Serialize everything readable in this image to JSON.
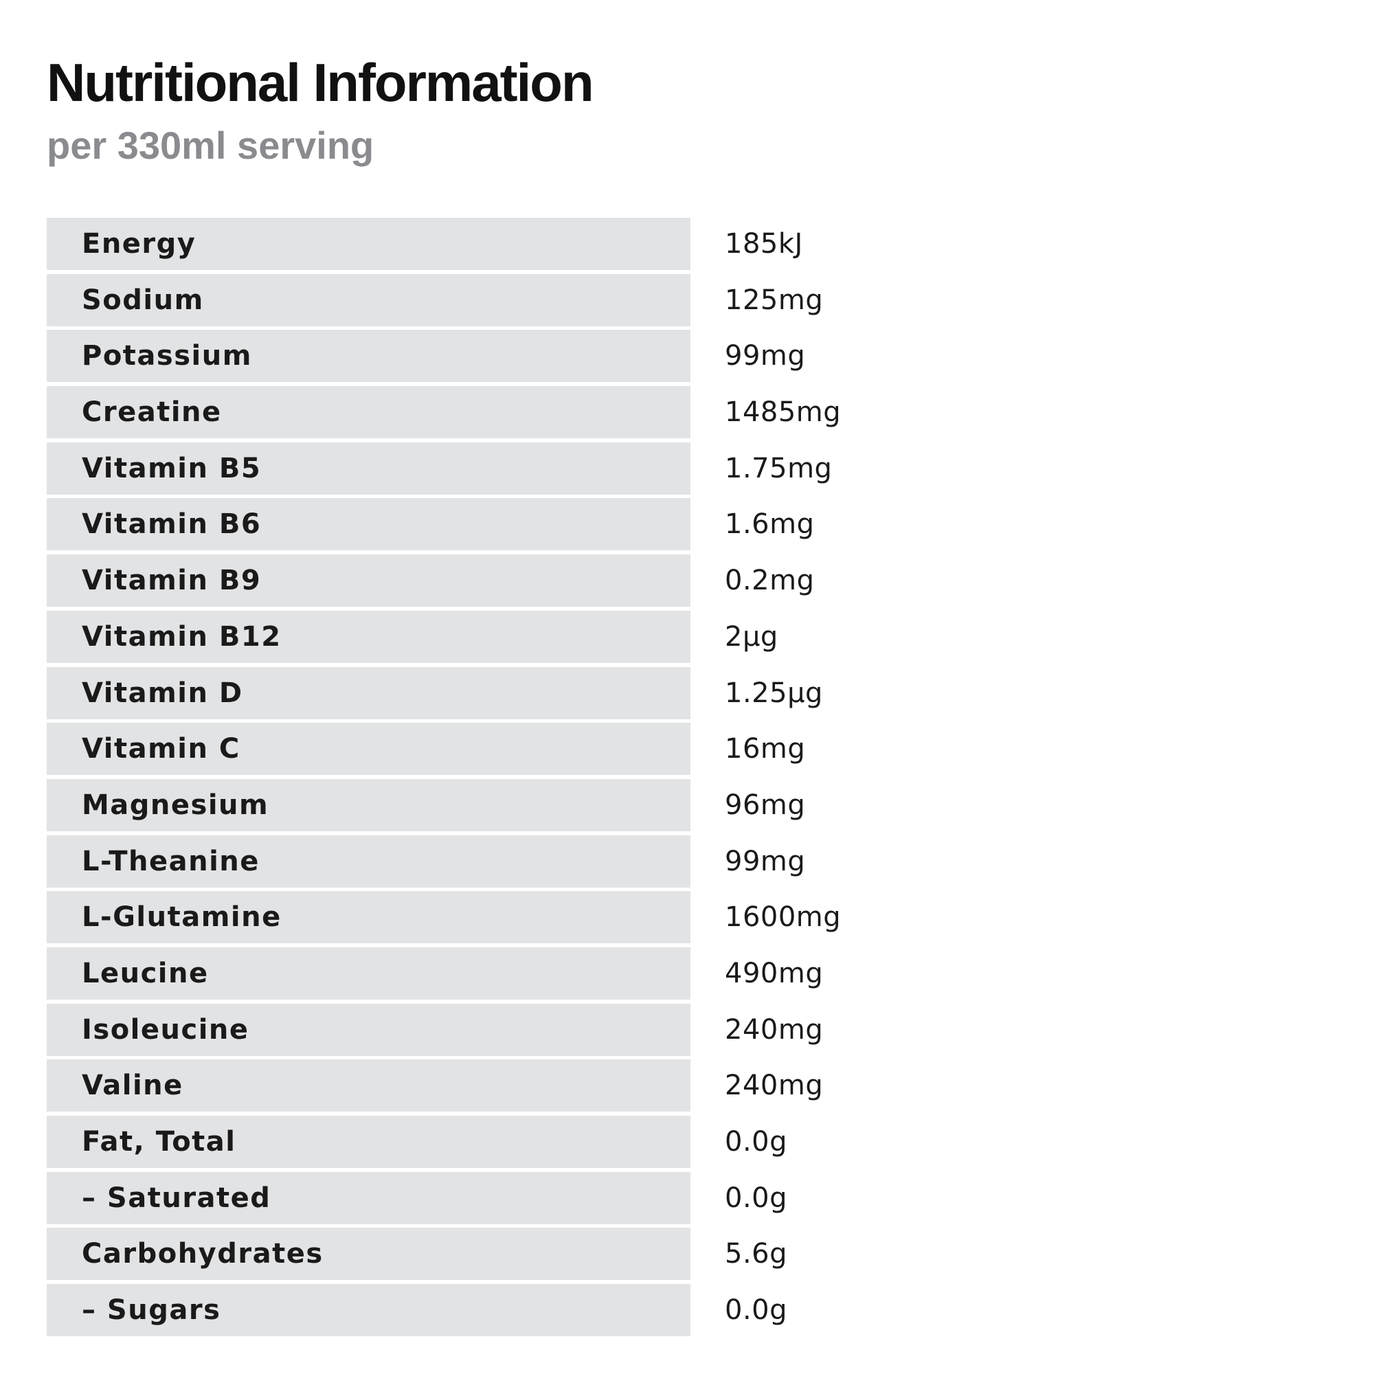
{
  "header": {
    "title": "Nutritional Information",
    "subtitle": "per 330ml serving"
  },
  "nutrients": [
    {
      "label": "Energy",
      "value": "185kJ"
    },
    {
      "label": "Sodium",
      "value": "125mg"
    },
    {
      "label": "Potassium",
      "value": "99mg"
    },
    {
      "label": "Creatine",
      "value": "1485mg"
    },
    {
      "label": "Vitamin B5",
      "value": "1.75mg"
    },
    {
      "label": "Vitamin B6",
      "value": "1.6mg"
    },
    {
      "label": "Vitamin B9",
      "value": "0.2mg"
    },
    {
      "label": "Vitamin B12",
      "value": "2μg"
    },
    {
      "label": "Vitamin D",
      "value": "1.25μg"
    },
    {
      "label": "Vitamin C",
      "value": "16mg"
    },
    {
      "label": "Magnesium",
      "value": "96mg"
    },
    {
      "label": "L-Theanine",
      "value": "99mg"
    },
    {
      "label": "L-Glutamine",
      "value": "1600mg"
    },
    {
      "label": "Leucine",
      "value": "490mg"
    },
    {
      "label": "Isoleucine",
      "value": "240mg"
    },
    {
      "label": "Valine",
      "value": "240mg"
    },
    {
      "label": "Fat, Total",
      "value": "0.0g"
    },
    {
      "label": "– Saturated",
      "value": "0.0g"
    },
    {
      "label": "Carbohydrates",
      "value": "5.6g"
    },
    {
      "label": "– Sugars",
      "value": "0.0g"
    }
  ],
  "colors": {
    "title": "#111111",
    "subtitle": "#8a8b8e",
    "label_background": "#e2e3e5",
    "text": "#1a1a1a",
    "background": "#ffffff"
  }
}
